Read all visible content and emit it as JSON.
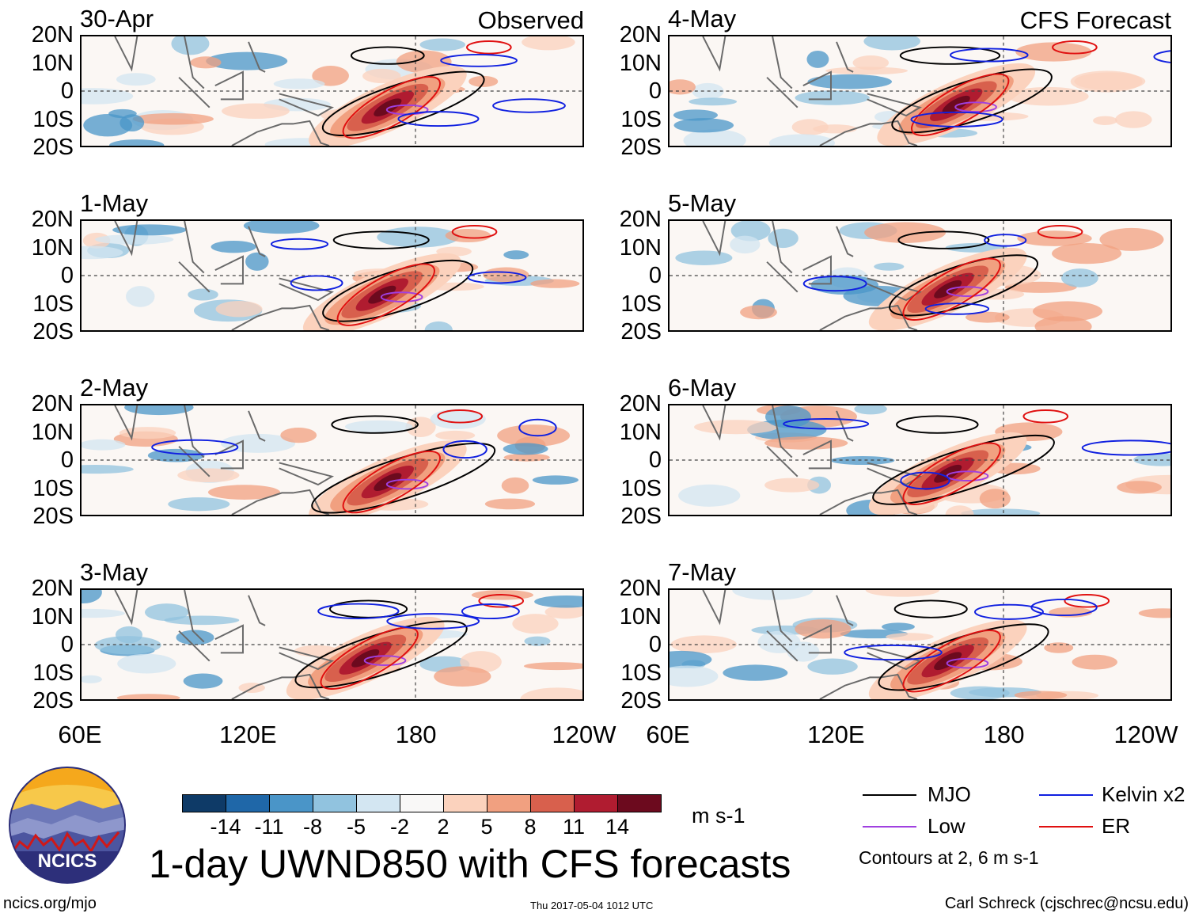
{
  "chart_data": {
    "type": "heatmap",
    "title": "1-day UWND850 with CFS forecasts",
    "variable": "850 hPa zonal wind anomaly",
    "units": "m s-1",
    "columns": [
      {
        "header": "Observed",
        "panels": [
          "30-Apr",
          "1-May",
          "2-May",
          "3-May"
        ]
      },
      {
        "header": "CFS Forecast",
        "panels": [
          "4-May",
          "5-May",
          "6-May",
          "7-May"
        ]
      }
    ],
    "lat_ticks": [
      "20N",
      "10N",
      "0",
      "10S",
      "20S"
    ],
    "lat_range": [
      -20,
      20
    ],
    "lon_ticks": [
      "60E",
      "120E",
      "180",
      "120W"
    ],
    "lon_range": [
      60,
      240
    ],
    "reference_lines": [
      "Equator (0)",
      "180"
    ],
    "colorbar": {
      "labels": [
        "-14",
        "-11",
        "-8",
        "-5",
        "-2",
        "2",
        "5",
        "8",
        "11",
        "14"
      ],
      "colors": [
        "#0e3a67",
        "#1f67a8",
        "#4a95c8",
        "#91c3df",
        "#d3e6f2",
        "#f9f8f7",
        "#fbd2bd",
        "#f1a080",
        "#d8604d",
        "#b01c30",
        "#6c0a1e"
      ]
    },
    "anomaly_centers": [
      {
        "panel": "30-Apr",
        "lon": 170,
        "lat": -6,
        "value": 14
      },
      {
        "panel": "1-May",
        "lon": 168,
        "lat": -7,
        "value": 14
      },
      {
        "panel": "2-May",
        "lon": 170,
        "lat": -8,
        "value": 14
      },
      {
        "panel": "3-May",
        "lon": 162,
        "lat": -5,
        "value": 14
      },
      {
        "panel": "4-May",
        "lon": 163,
        "lat": -5,
        "value": 14
      },
      {
        "panel": "5-May",
        "lon": 160,
        "lat": -5,
        "value": 14
      },
      {
        "panel": "6-May",
        "lon": 160,
        "lat": -5,
        "value": 14
      },
      {
        "panel": "7-May",
        "lon": 160,
        "lat": -6,
        "value": 14
      }
    ],
    "legend": [
      {
        "name": "MJO",
        "color": "#000000"
      },
      {
        "name": "Kelvin x2",
        "color": "#1020e0"
      },
      {
        "name": "Low",
        "color": "#a040e0"
      },
      {
        "name": "ER",
        "color": "#e01010"
      }
    ],
    "contour_note": "Contours at 2, 6 m s-1"
  },
  "logo_text": "NCICS",
  "footer": {
    "left": "ncics.org/mjo",
    "middle": "Thu 2017-05-04 1012 UTC",
    "right": "Carl Schreck (cjschrec@ncsu.edu)"
  }
}
